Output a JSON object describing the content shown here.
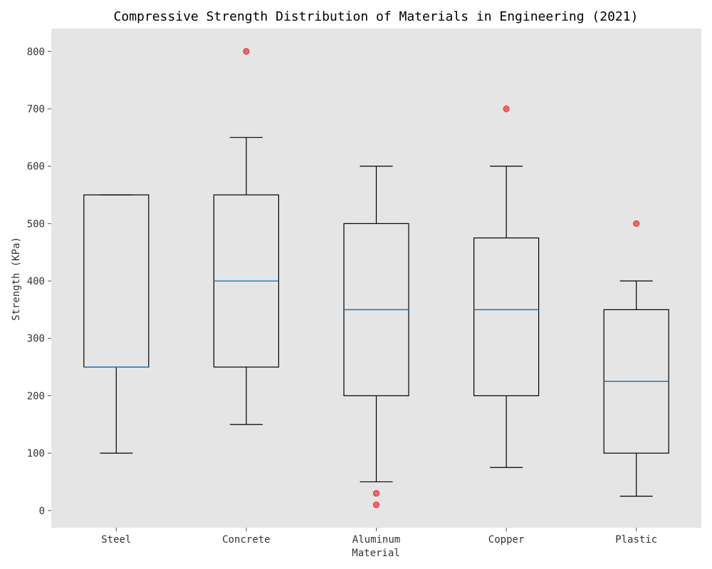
{
  "chart_data": {
    "type": "box",
    "title": "Compressive Strength Distribution of Materials in Engineering (2021)",
    "xlabel": "Material",
    "ylabel": "Strength (KPa)",
    "ylim": [
      -30,
      840
    ],
    "yticks": [
      0,
      100,
      200,
      300,
      400,
      500,
      600,
      700,
      800
    ],
    "grid": false,
    "categories": [
      "Steel",
      "Concrete",
      "Aluminum",
      "Copper",
      "Plastic"
    ],
    "boxes": [
      {
        "name": "Steel",
        "whisker_low": 100,
        "q1": 250,
        "median": 250,
        "q3": 550,
        "whisker_high": 550,
        "outliers": []
      },
      {
        "name": "Concrete",
        "whisker_low": 150,
        "q1": 250,
        "median": 400,
        "q3": 550,
        "whisker_high": 650,
        "outliers": [
          800
        ]
      },
      {
        "name": "Aluminum",
        "whisker_low": 50,
        "q1": 200,
        "median": 350,
        "q3": 500,
        "whisker_high": 600,
        "outliers": [
          30,
          10
        ]
      },
      {
        "name": "Copper",
        "whisker_low": 75,
        "q1": 200,
        "median": 350,
        "q3": 475,
        "whisker_high": 600,
        "outliers": [
          700
        ]
      },
      {
        "name": "Plastic",
        "whisker_low": 25,
        "q1": 100,
        "median": 225,
        "q3": 350,
        "whisker_high": 400,
        "outliers": [
          500
        ]
      }
    ],
    "colors": {
      "plot_background": "#e5e5e5",
      "box": "#000000",
      "median": "#1f77b4",
      "outlier": "#f05050"
    }
  }
}
